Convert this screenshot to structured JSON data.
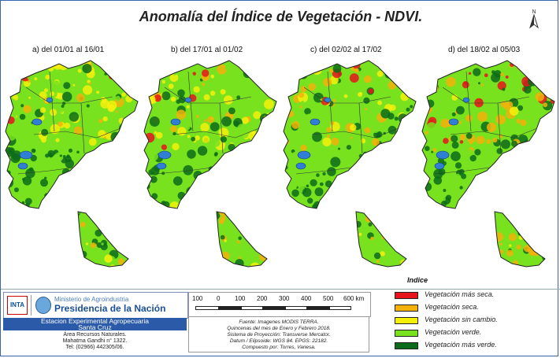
{
  "title": "Anomalía del Índice de Vegetación - NDVI.",
  "north_label": "N",
  "panels": [
    {
      "label": "a) del 01/01  al 16/01",
      "dry_level": 0.15
    },
    {
      "label": "b) del 17/01 al 01/02",
      "dry_level": 0.25
    },
    {
      "label": "c) del 02/02 al 17/02",
      "dry_level": 0.35
    },
    {
      "label": "d) del 18/02 al 05/03",
      "dry_level": 0.55
    }
  ],
  "legend": {
    "title": "Indice",
    "items": [
      {
        "label": "Vegetación más seca.",
        "color": "#e8141c"
      },
      {
        "label": "Vegetación seca.",
        "color": "#f3b10a"
      },
      {
        "label": "Vegetación sin cambio.",
        "color": "#f4f00c"
      },
      {
        "label": "Vegetación verde.",
        "color": "#78e21f"
      },
      {
        "label": "Vegetación más verde.",
        "color": "#0c6b1a"
      }
    ]
  },
  "scale_bar": {
    "ticks": [
      "100",
      "0",
      "100",
      "200",
      "300",
      "400",
      "500",
      "600 km"
    ]
  },
  "source": {
    "lines": [
      "Fuente: Imagenes MODIS TERRA.",
      "Quincenas del mes de Enero y Febrero 2018.",
      "Sistema de Proyección: Transverse Mercator.",
      "Datum / Elipsoide: WGS 84. EPGS: 22182.",
      "Compuesto por: Torres, Vanesa."
    ]
  },
  "institution": {
    "logo_text": "INTA",
    "ministry": "Ministerio de Agroindustria",
    "presidency": "Presidencia de la Nación",
    "station_line1": "Estacion Experimental Agropecuaria",
    "station_line2": "Santa Cruz",
    "address_lines": [
      "Área Recursos Naturales.",
      "Mahatma Gandhi n° 1322.",
      "Tel: (02966) 442305/06."
    ]
  }
}
